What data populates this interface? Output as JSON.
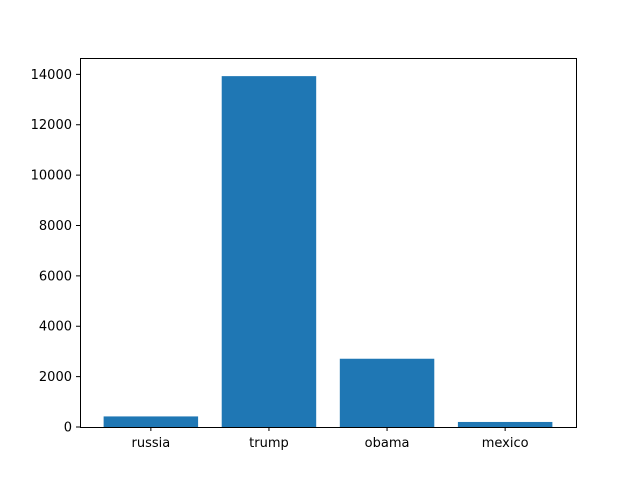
{
  "chart_data": {
    "type": "bar",
    "categories": [
      "russia",
      "trump",
      "obama",
      "mexico"
    ],
    "values": [
      420,
      13930,
      2710,
      200
    ],
    "ylim": [
      0,
      14650
    ],
    "yticks": [
      0,
      2000,
      4000,
      6000,
      8000,
      10000,
      12000,
      14000
    ],
    "ytick_labels": [
      "0",
      "2000",
      "4000",
      "6000",
      "8000",
      "10000",
      "12000",
      "14000"
    ],
    "grid": false,
    "bar_color": "#1f77b4"
  }
}
